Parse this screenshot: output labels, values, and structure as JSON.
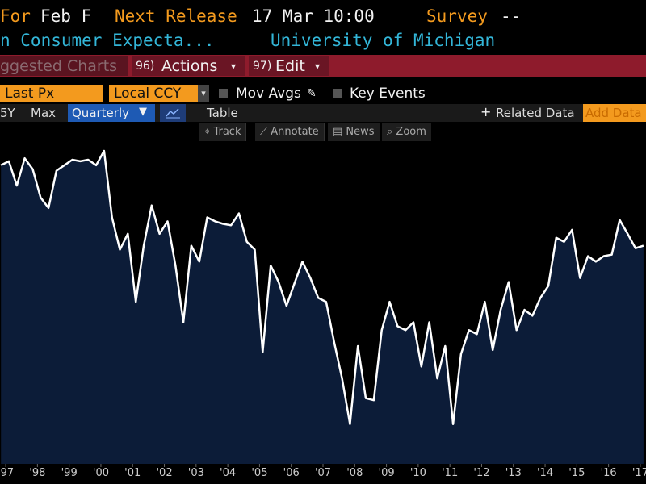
{
  "header": {
    "for_label": "For",
    "period": "Feb F",
    "release_label": "Next Release",
    "release_time": "17 Mar 10:00",
    "survey_label": "Survey",
    "survey_value": "--",
    "security_name": "n Consumer Expecta...",
    "source": "University of Michigan"
  },
  "menu": {
    "suggested": "ggested Charts",
    "actions_num": "96)",
    "actions": "Actions",
    "edit_num": "97)",
    "edit": "Edit"
  },
  "options": {
    "field": "Last Px",
    "currency": "Local CCY",
    "mov_avgs": "Mov Avgs",
    "key_events": "Key Events"
  },
  "range_bar": {
    "y5": "5Y",
    "max": "Max",
    "frequency": "Quarterly",
    "table": "Table",
    "related": "Related Data",
    "add": "Add Data"
  },
  "tools": {
    "track": "Track",
    "annotate": "Annotate",
    "news": "News",
    "zoom": "Zoom"
  },
  "chart_data": {
    "type": "area",
    "color": "#ffffff",
    "fill": "#0c1c38",
    "x": [
      1996.85,
      1997.1,
      1997.35,
      1997.6,
      1997.85,
      1998.1,
      1998.35,
      1998.6,
      1998.85,
      1999.1,
      1999.35,
      1999.6,
      1999.85,
      2000.1,
      2000.35,
      2000.6,
      2000.85,
      2001.1,
      2001.35,
      2001.6,
      2001.85,
      2002.1,
      2002.35,
      2002.6,
      2002.85,
      2003.1,
      2003.35,
      2003.6,
      2003.85,
      2004.1,
      2004.35,
      2004.6,
      2004.85,
      2005.1,
      2005.35,
      2005.6,
      2005.85,
      2006.1,
      2006.35,
      2006.6,
      2006.85,
      2007.1,
      2007.35,
      2007.6,
      2007.85,
      2008.1,
      2008.35,
      2008.6,
      2008.85,
      2009.1,
      2009.35,
      2009.6,
      2009.85,
      2010.1,
      2010.35,
      2010.6,
      2010.85,
      2011.1,
      2011.35,
      2011.6,
      2011.85,
      2012.1,
      2012.35,
      2012.6,
      2012.85,
      2013.1,
      2013.35,
      2013.6,
      2013.85,
      2014.1,
      2014.35,
      2014.6,
      2014.85,
      2015.1,
      2015.35,
      2015.6,
      2015.85,
      2016.1,
      2016.35,
      2016.6,
      2016.85,
      2017.1
    ],
    "values": [
      102.1,
      102.9,
      98.0,
      103.5,
      101.3,
      95.6,
      93.5,
      101.0,
      102.1,
      103.2,
      102.9,
      103.2,
      102.1,
      105.0,
      91.6,
      85.1,
      88.3,
      74.6,
      85.9,
      94.0,
      88.3,
      90.8,
      81.9,
      70.5,
      85.9,
      82.7,
      91.6,
      90.8,
      90.3,
      90.0,
      92.4,
      86.7,
      85.1,
      64.5,
      81.9,
      78.6,
      73.8,
      78.3,
      82.7,
      79.4,
      75.4,
      74.6,
      66.5,
      59.2,
      50.0,
      65.7,
      55.2,
      54.8,
      68.9,
      74.6,
      69.7,
      68.9,
      70.5,
      61.6,
      70.5,
      59.2,
      65.7,
      50.0,
      64.1,
      68.9,
      68.1,
      74.6,
      64.9,
      73.0,
      78.6,
      68.9,
      73.0,
      71.8,
      75.4,
      77.8,
      87.5,
      86.7,
      89.1,
      79.4,
      83.8,
      82.7,
      83.8,
      84.1,
      91.1,
      88.3,
      85.4,
      85.9
    ],
    "xlim": [
      1996.82,
      2017.18
    ],
    "ylim": [
      42,
      111
    ],
    "xticks": [
      {
        "value": 1997,
        "label": "'97"
      },
      {
        "value": 1998,
        "label": "'98"
      },
      {
        "value": 1999,
        "label": "'99"
      },
      {
        "value": 2000,
        "label": "'00"
      },
      {
        "value": 2001,
        "label": "'01"
      },
      {
        "value": 2002,
        "label": "'02"
      },
      {
        "value": 2003,
        "label": "'03"
      },
      {
        "value": 2004,
        "label": "'04"
      },
      {
        "value": 2005,
        "label": "'05"
      },
      {
        "value": 2006,
        "label": "'06"
      },
      {
        "value": 2007,
        "label": "'07"
      },
      {
        "value": 2008,
        "label": "'08"
      },
      {
        "value": 2009,
        "label": "'09"
      },
      {
        "value": 2010,
        "label": "'10"
      },
      {
        "value": 2011,
        "label": "'11"
      },
      {
        "value": 2012,
        "label": "'12"
      },
      {
        "value": 2013,
        "label": "'13"
      },
      {
        "value": 2014,
        "label": "'14"
      },
      {
        "value": 2015,
        "label": "'15"
      },
      {
        "value": 2016,
        "label": "'16"
      },
      {
        "value": 2017,
        "label": "'17"
      }
    ]
  }
}
